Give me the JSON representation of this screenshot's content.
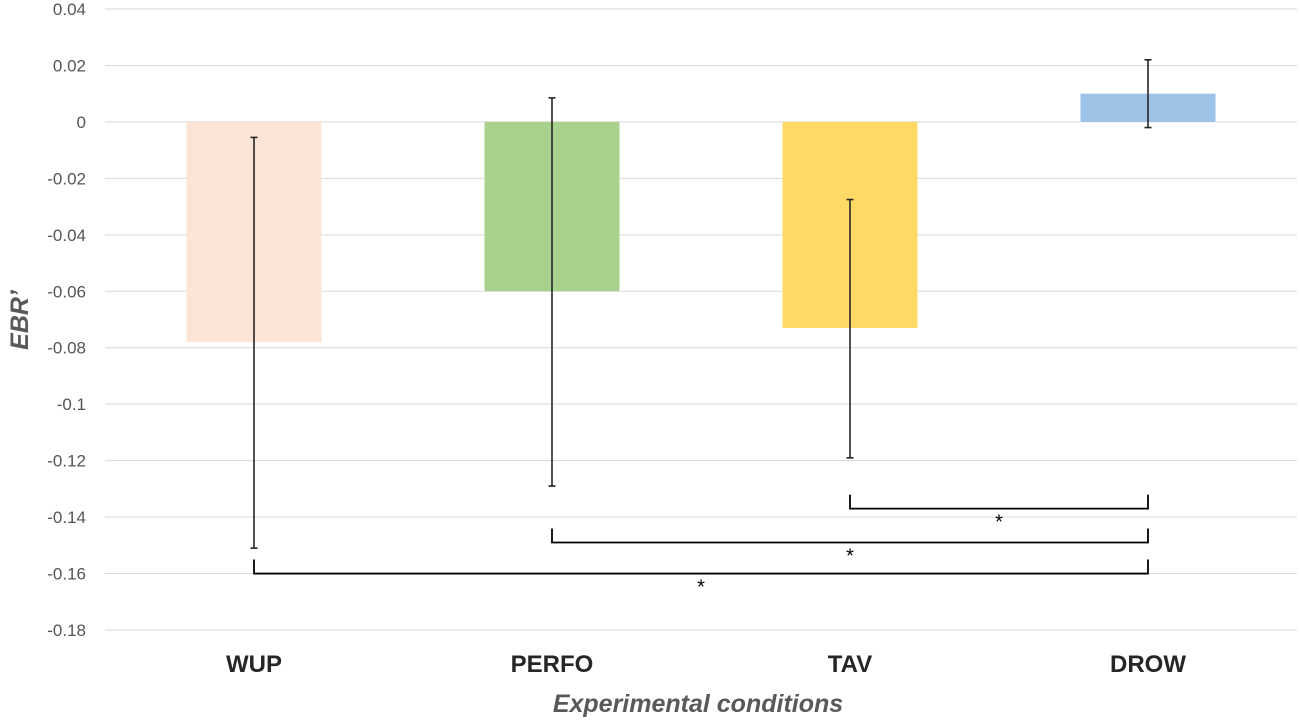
{
  "chart_data": {
    "type": "bar",
    "title": "",
    "xlabel": "Experimental conditions",
    "ylabel": "EBR’",
    "ylim": [
      -0.18,
      0.04
    ],
    "ytick_step": 0.02,
    "yticks": [
      "0.04",
      "0.02",
      "0",
      "-0.02",
      "-0.04",
      "-0.06",
      "-0.08",
      "-0.1",
      "-0.12",
      "-0.14",
      "-0.16",
      "-0.18"
    ],
    "grid": true,
    "categories": [
      "WUP",
      "PERFO",
      "TAV",
      "DROW"
    ],
    "values": [
      -0.078,
      -0.06,
      -0.073,
      0.01
    ],
    "error_low": [
      -0.151,
      -0.129,
      -0.119,
      -0.002
    ],
    "error_high": [
      -0.0055,
      0.0085,
      -0.0275,
      0.022
    ],
    "colors": [
      "#fce4d6",
      "#a9d18e",
      "#ffd966",
      "#9dc3e6"
    ],
    "significance": [
      {
        "from": "TAV",
        "to": "DROW",
        "y": -0.137,
        "label": "*"
      },
      {
        "from": "PERFO",
        "to": "DROW",
        "y": -0.149,
        "label": "*"
      },
      {
        "from": "WUP",
        "to": "DROW",
        "y": -0.16,
        "label": "*"
      }
    ]
  }
}
